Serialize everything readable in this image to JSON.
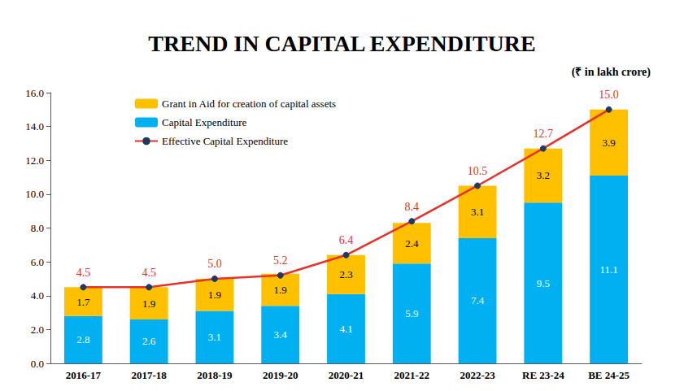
{
  "chart_data": {
    "type": "bar",
    "title": "TREND IN CAPITAL EXPENDITURE",
    "subtitle": "(₹ in lakh crore)",
    "categories": [
      "2016-17",
      "2017-18",
      "2018-19",
      "2019-20",
      "2020-21",
      "2021-22",
      "2022-23",
      "RE 23-24",
      "BE 24-25"
    ],
    "series": [
      {
        "name": "Grant in Aid for creation of capital assets",
        "type": "bar",
        "color": "#FFC000",
        "values": [
          1.7,
          1.9,
          1.9,
          1.9,
          2.3,
          2.4,
          3.1,
          3.2,
          3.9
        ]
      },
      {
        "name": "Capital Expenditure",
        "type": "bar",
        "color": "#00B0F0",
        "values": [
          2.8,
          2.6,
          3.1,
          3.4,
          4.1,
          5.9,
          7.4,
          9.5,
          11.1
        ]
      },
      {
        "name": "Effective Capital Expenditure",
        "type": "line",
        "color": "#E8312A",
        "marker": "circle",
        "line_style": "solid",
        "values": [
          4.5,
          4.5,
          5.0,
          5.2,
          6.4,
          8.4,
          10.5,
          12.7,
          15.0
        ],
        "value_labels": [
          "4.5",
          "4.5",
          "5.0",
          "5.2",
          "6.4",
          "8.4",
          "10.5",
          "12.7",
          "15.0"
        ]
      }
    ],
    "stacked": true,
    "data_labels": true,
    "legend": "upper left",
    "grid": false,
    "ylim": [
      0,
      16
    ],
    "yticks": [
      {
        "value": 0,
        "label": "0.0"
      },
      {
        "value": 2,
        "label": "2.0"
      },
      {
        "value": 4,
        "label": "4.0"
      },
      {
        "value": 6,
        "label": "6.0"
      },
      {
        "value": 8,
        "label": "8.0"
      },
      {
        "value": 10,
        "label": "10.0"
      },
      {
        "value": 12,
        "label": "12.0"
      },
      {
        "value": 14,
        "label": "14.0"
      },
      {
        "value": 16,
        "label": "16.0"
      }
    ]
  }
}
